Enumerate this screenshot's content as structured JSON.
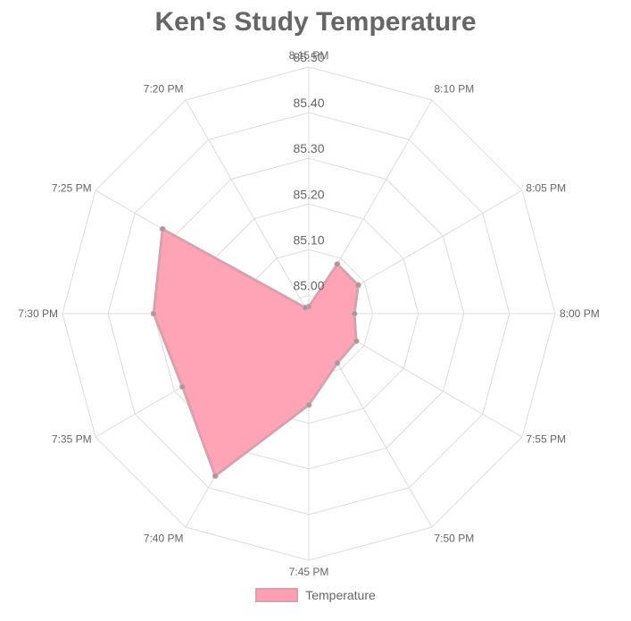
{
  "chart_data": {
    "type": "radar",
    "title": "Ken's Study Temperature",
    "categories": [
      "8:15 PM",
      "8:10 PM",
      "8:05 PM",
      "8:00 PM",
      "7:55 PM",
      "7:50 PM",
      "7:45 PM",
      "7:40 PM",
      "7:35 PM",
      "7:30 PM",
      "7:25 PM",
      "7:20 PM"
    ],
    "series": [
      {
        "name": "Temperature",
        "values": [
          84.975,
          85.085,
          85.085,
          85.06,
          85.08,
          85.085,
          85.16,
          85.37,
          85.28,
          85.3,
          85.33,
          84.975
        ],
        "fill_color": "#ff9fb3",
        "stroke_color": "#d9a1ad"
      }
    ],
    "r_ticks": [
      "85.00",
      "85.10",
      "85.20",
      "85.30",
      "85.40",
      "85.50"
    ],
    "r_min": 84.96,
    "r_max": 85.5,
    "grid": true,
    "legend_position": "bottom"
  }
}
